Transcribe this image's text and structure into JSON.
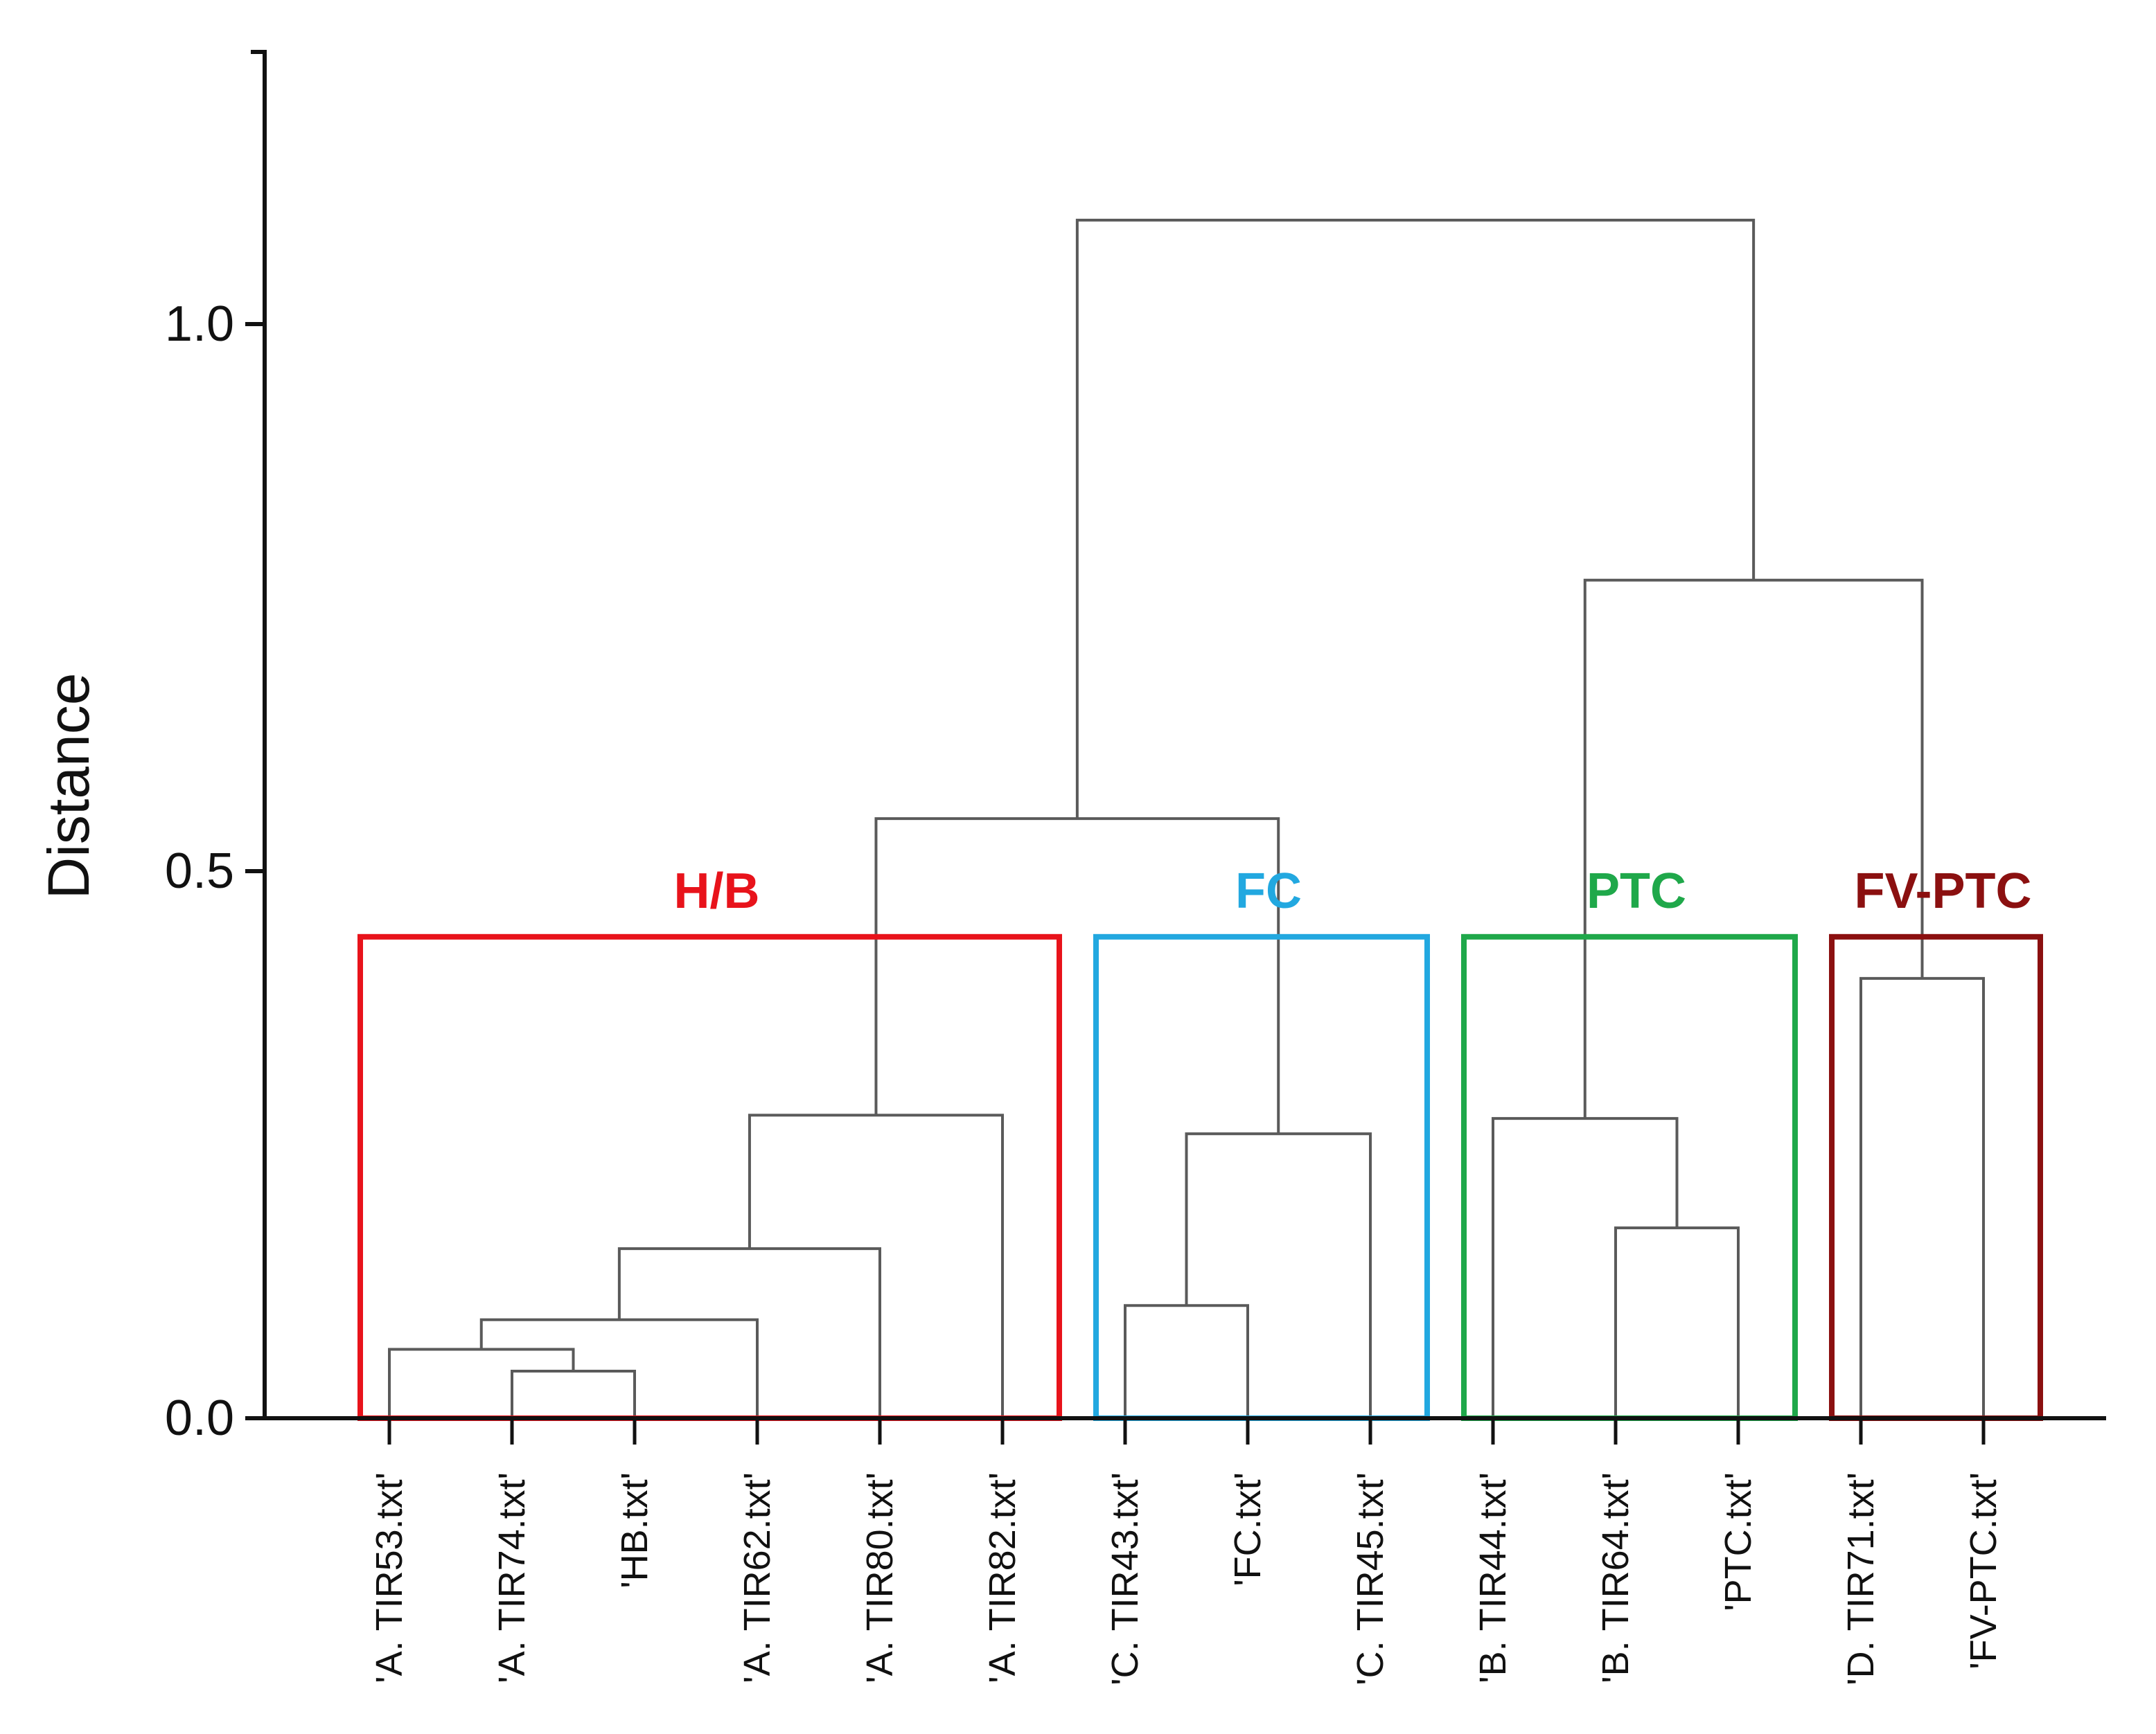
{
  "chart_data": {
    "type": "dendrogram",
    "ylabel": "Distance",
    "ylim": [
      0,
      1.25
    ],
    "yticks": [
      0.0,
      0.5,
      1.0
    ],
    "ytick_labels": [
      "0.0",
      "0.5",
      "1.0"
    ],
    "leaves": [
      "'A. TIR53.txt'",
      "'A. TIR74.txt'",
      "'HB.txt'",
      "'A. TIR62.txt'",
      "'A. TIR80.txt'",
      "'A. TIR82.txt'",
      "'C. TIR43.txt'",
      "'FC.txt'",
      "'C. TIR45.txt'",
      "'B. TIR44.txt'",
      "'B. TIR64.txt'",
      "'PTC.txt'",
      "'D. TIR71.txt'",
      "'FV-PTC.txt'"
    ],
    "merges": [
      {
        "id": "m1",
        "a": "L1",
        "b": "L2",
        "height": 0.043
      },
      {
        "id": "m2",
        "a": "L0",
        "b": "m1",
        "height": 0.063
      },
      {
        "id": "m3",
        "a": "m2",
        "b": "L3",
        "height": 0.09
      },
      {
        "id": "m4",
        "a": "m3",
        "b": "L4",
        "height": 0.155
      },
      {
        "id": "m5",
        "a": "m4",
        "b": "L5",
        "height": 0.277
      },
      {
        "id": "m6",
        "a": "L6",
        "b": "L7",
        "height": 0.103
      },
      {
        "id": "m7",
        "a": "m6",
        "b": "L8",
        "height": 0.26
      },
      {
        "id": "m8",
        "a": "m5",
        "b": "m7",
        "height": 0.548
      },
      {
        "id": "m9",
        "a": "L10",
        "b": "L11",
        "height": 0.174
      },
      {
        "id": "m10",
        "a": "L9",
        "b": "m9",
        "height": 0.274
      },
      {
        "id": "m11",
        "a": "L12",
        "b": "L13",
        "height": 0.402
      },
      {
        "id": "m12",
        "a": "m10",
        "b": "m11",
        "height": 0.766
      },
      {
        "id": "m13",
        "a": "m8",
        "b": "m12",
        "height": 1.095
      }
    ],
    "groups": [
      {
        "name": "H/B",
        "color": "#e8131b",
        "from": 0,
        "to": 5
      },
      {
        "name": "FC",
        "color": "#22a8e0",
        "from": 6,
        "to": 8
      },
      {
        "name": "PTC",
        "color": "#1fa84a",
        "from": 9,
        "to": 11
      },
      {
        "name": "FV-PTC",
        "color": "#8b1010",
        "from": 12,
        "to": 13
      }
    ],
    "group_box_top": 0.44
  }
}
